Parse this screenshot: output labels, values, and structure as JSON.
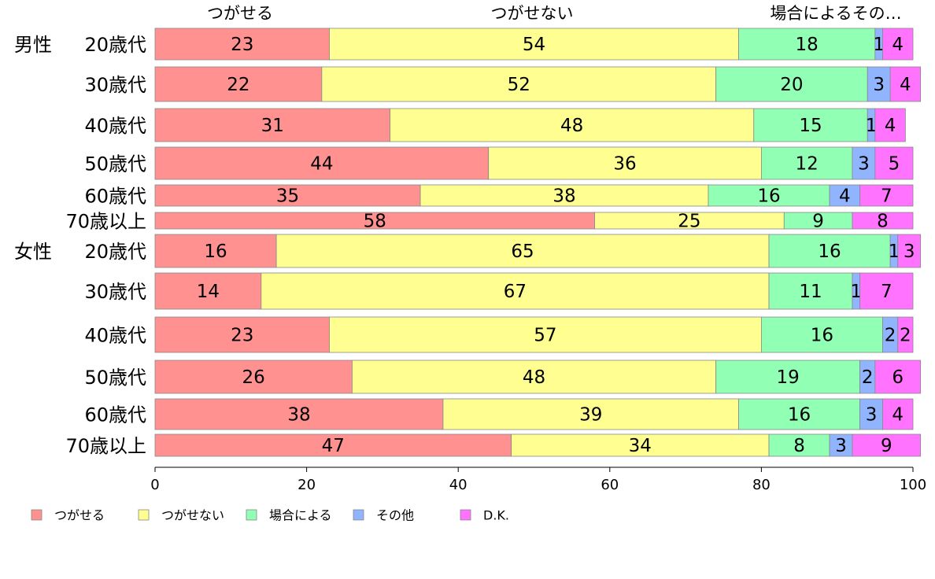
{
  "chart_data": {
    "type": "bar",
    "orientation": "horizontal",
    "stacked": true,
    "column_headers": [
      "つがせる",
      "つがせない",
      "場合によるその…"
    ],
    "groups": [
      {
        "name": "男性",
        "rows": [
          "20歳代",
          "30歳代",
          "40歳代",
          "50歳代",
          "60歳代",
          "70歳以上"
        ]
      },
      {
        "name": "女性",
        "rows": [
          "20歳代",
          "30歳代",
          "40歳代",
          "50歳代",
          "60歳代",
          "70歳以上"
        ]
      }
    ],
    "series": [
      {
        "name": "つがせる",
        "color": "#ff9190",
        "values": [
          23,
          22,
          31,
          44,
          35,
          58,
          16,
          14,
          23,
          26,
          38,
          47
        ]
      },
      {
        "name": "つがせない",
        "color": "#ffff91",
        "values": [
          54,
          52,
          48,
          36,
          38,
          25,
          65,
          67,
          57,
          48,
          39,
          34
        ]
      },
      {
        "name": "場合による",
        "color": "#91ffb4",
        "values": [
          18,
          20,
          15,
          12,
          16,
          9,
          16,
          11,
          16,
          19,
          16,
          8
        ]
      },
      {
        "name": "その他",
        "color": "#91b4ff",
        "values": [
          1,
          3,
          1,
          3,
          4,
          0,
          1,
          1,
          2,
          2,
          3,
          3
        ]
      },
      {
        "name": "D.K.",
        "color": "#ff73ff",
        "values": [
          4,
          4,
          4,
          5,
          7,
          8,
          3,
          7,
          2,
          6,
          4,
          9
        ]
      }
    ],
    "xlim": [
      0,
      100
    ],
    "xticks": [
      "0",
      "20",
      "40",
      "60",
      "80",
      "100"
    ],
    "legend": "bottom-left"
  }
}
